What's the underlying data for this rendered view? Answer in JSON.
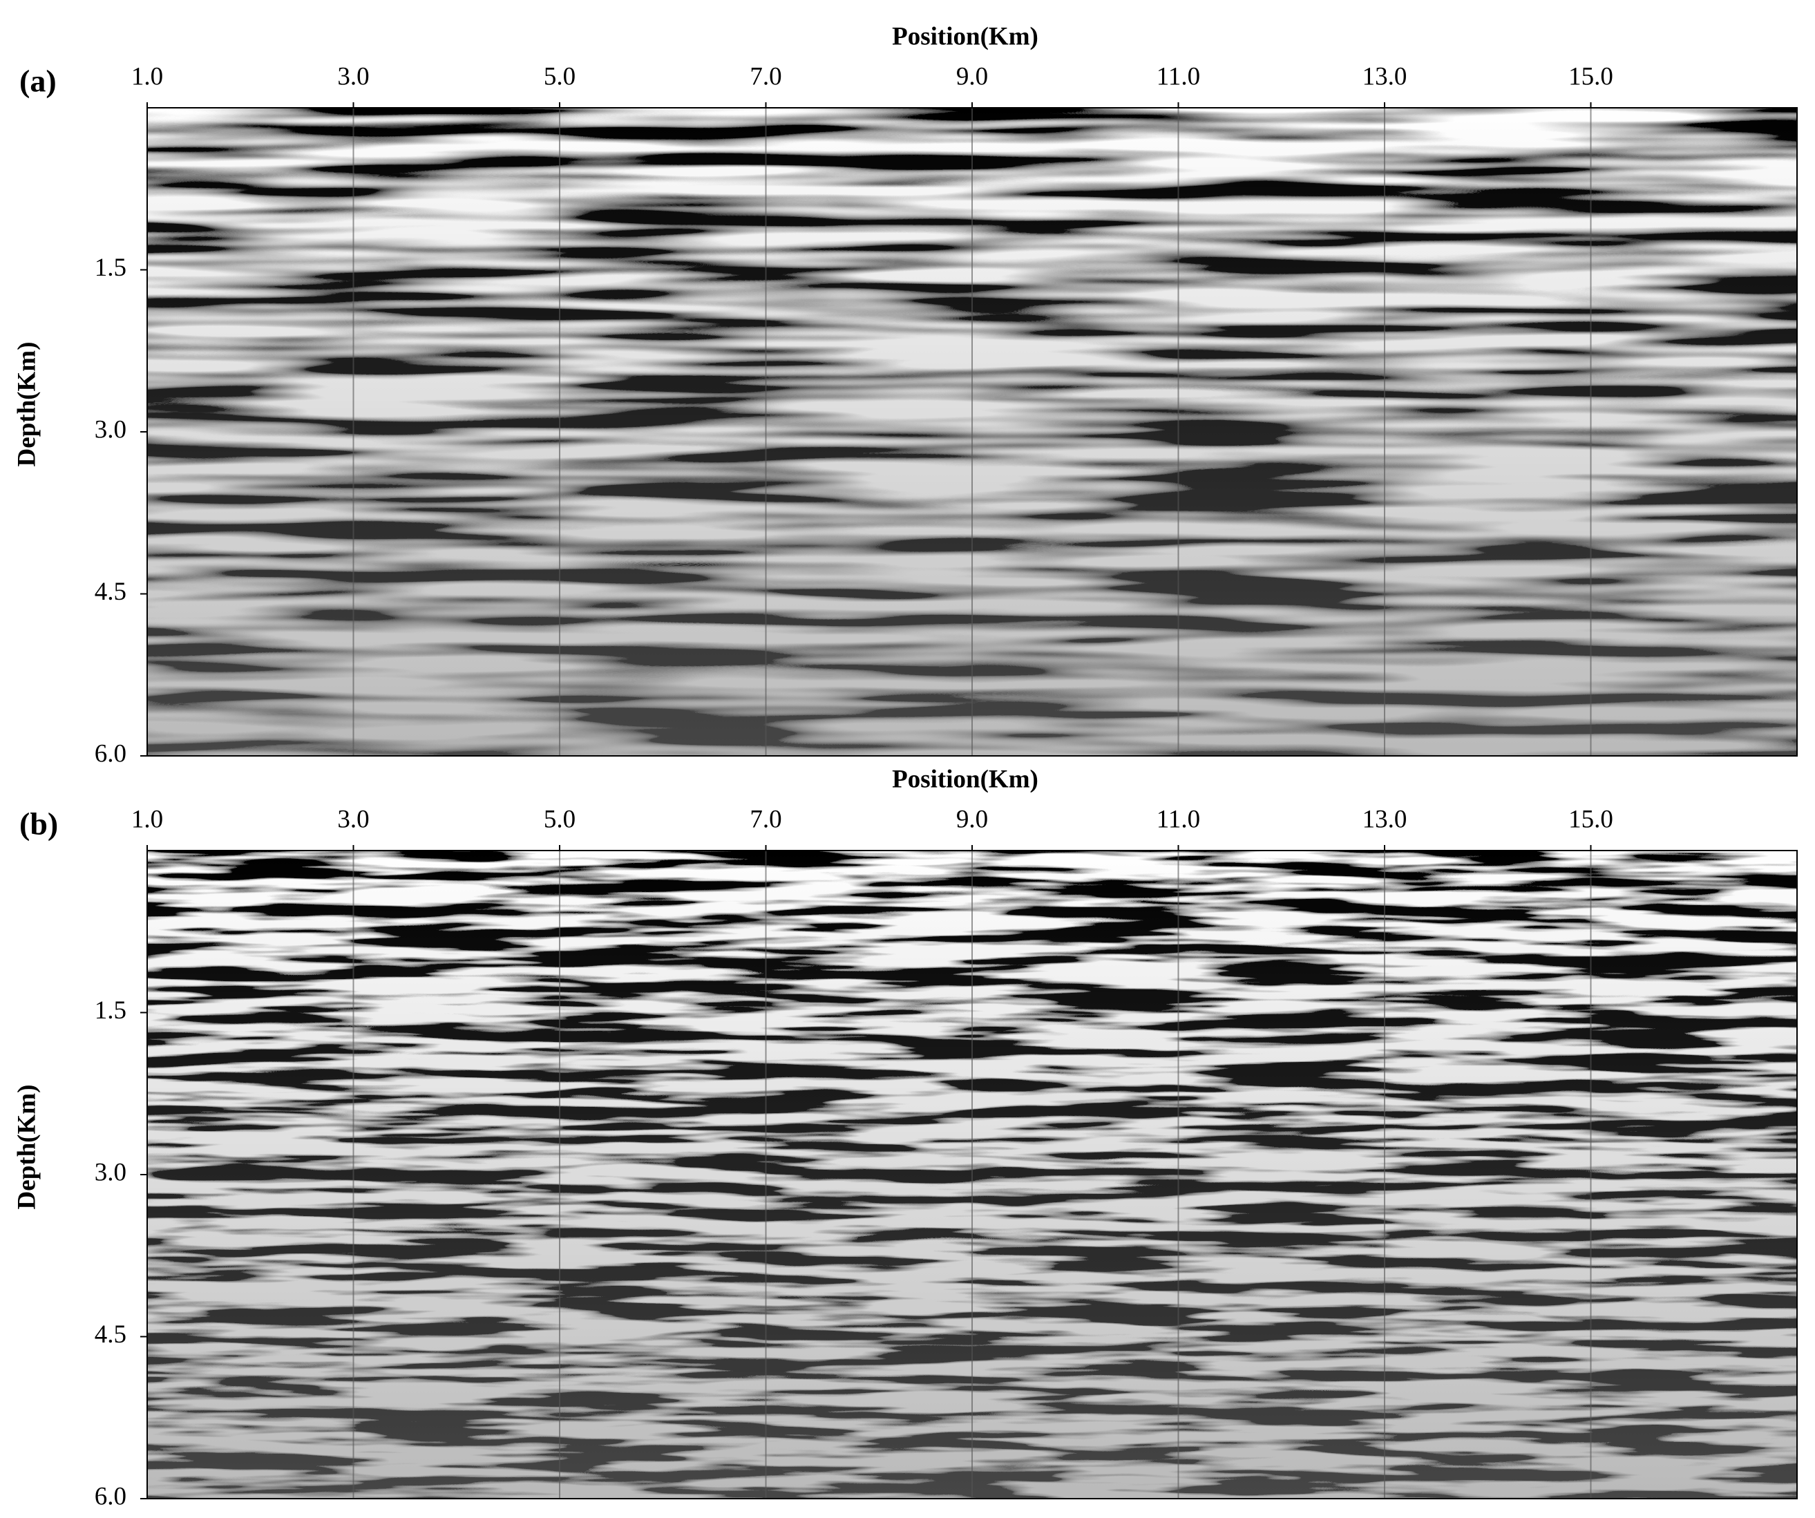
{
  "chart_data": [
    {
      "type": "image",
      "panel_label": "(a)",
      "title": "Position(Km)",
      "ylabel": "Depth(Km)",
      "xlim": [
        1,
        17
      ],
      "xticks": [
        {
          "value": 1,
          "label": "1.0"
        },
        {
          "value": 3,
          "label": "3.0"
        },
        {
          "value": 5,
          "label": "5.0"
        },
        {
          "value": 7,
          "label": "7.0"
        },
        {
          "value": 9,
          "label": "9.0"
        },
        {
          "value": 11,
          "label": "11.0"
        },
        {
          "value": 13,
          "label": "13.0"
        },
        {
          "value": 15,
          "label": "15.0"
        }
      ],
      "ylim": [
        0,
        6
      ],
      "yticks": [
        1.5,
        {
          "value": 3,
          "label": "3.0"
        },
        4.5,
        {
          "value": 6,
          "label": "6.0"
        }
      ]
    },
    {
      "type": "image",
      "panel_label": "(b)",
      "title": "Position(Km)",
      "ylabel": "Depth(Km)",
      "xlim": [
        1,
        17
      ],
      "xticks": [
        {
          "value": 1,
          "label": "1.0"
        },
        {
          "value": 3,
          "label": "3.0"
        },
        {
          "value": 5,
          "label": "5.0"
        },
        {
          "value": 7,
          "label": "7.0"
        },
        {
          "value": 9,
          "label": "9.0"
        },
        {
          "value": 11,
          "label": "11.0"
        },
        {
          "value": 13,
          "label": "13.0"
        },
        {
          "value": 15,
          "label": "15.0"
        }
      ],
      "ylim": [
        0,
        6
      ],
      "yticks": [
        1.5,
        {
          "value": 3,
          "label": "3.0"
        },
        4.5,
        {
          "value": 6,
          "label": "6.0"
        }
      ]
    }
  ]
}
